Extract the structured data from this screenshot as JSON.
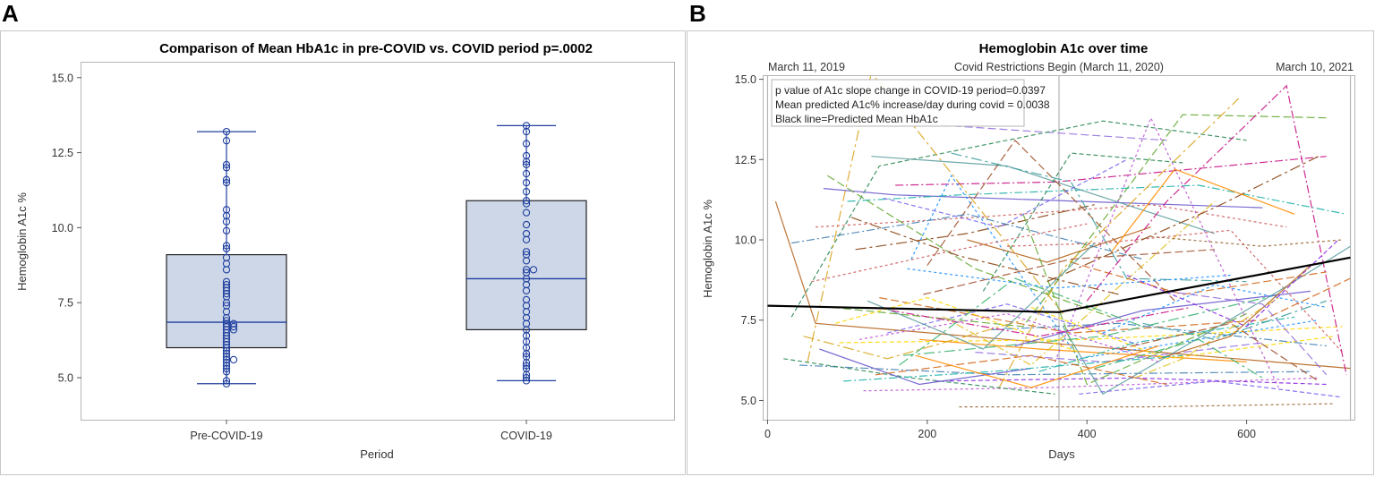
{
  "figure": {
    "panel_a_letter": "A",
    "panel_b_letter": "B"
  },
  "chart_data": [
    {
      "type": "box",
      "title": "Comparison of Mean HbA1c in pre-COVID vs. COVID period p=.0002",
      "xlabel": "Period",
      "ylabel": "Hemoglobin A1c %",
      "ylim": [
        3.6,
        15.5
      ],
      "yticks": [
        5.0,
        7.5,
        10.0,
        12.5,
        15.0
      ],
      "ytick_labels": [
        "5.0",
        "7.5",
        "10.0",
        "12.5",
        "15.0"
      ],
      "categories": [
        "Pre-COVID-19",
        "COVID-19"
      ],
      "boxes": [
        {
          "name": "Pre-COVID-19",
          "min": 4.8,
          "q1": 6.0,
          "median": 6.85,
          "q3": 9.1,
          "max": 13.2,
          "points": [
            4.8,
            4.9,
            5.2,
            5.3,
            5.4,
            5.5,
            5.6,
            5.6,
            5.7,
            5.8,
            5.9,
            6.0,
            6.1,
            6.2,
            6.3,
            6.4,
            6.5,
            6.6,
            6.6,
            6.7,
            6.7,
            6.8,
            6.8,
            6.9,
            7.0,
            7.2,
            7.4,
            7.5,
            7.7,
            7.8,
            7.9,
            8.0,
            8.1,
            8.2,
            8.6,
            8.8,
            9.0,
            9.3,
            9.4,
            9.9,
            10.2,
            10.4,
            10.6,
            11.5,
            11.6,
            12.0,
            12.1,
            12.9,
            13.2
          ]
        },
        {
          "name": "COVID-19",
          "min": 4.9,
          "q1": 6.6,
          "median": 8.3,
          "q3": 10.9,
          "max": 13.4,
          "points": [
            4.9,
            5.0,
            5.1,
            5.3,
            5.4,
            5.5,
            5.7,
            5.8,
            6.0,
            6.2,
            6.4,
            6.6,
            6.8,
            7.0,
            7.2,
            7.4,
            7.6,
            7.9,
            8.1,
            8.3,
            8.5,
            8.6,
            8.6,
            8.9,
            9.1,
            9.2,
            9.6,
            9.8,
            10.1,
            10.5,
            10.8,
            10.9,
            11.2,
            11.5,
            11.8,
            12.1,
            12.2,
            12.4,
            12.8,
            13.2,
            13.4
          ]
        }
      ]
    },
    {
      "type": "line",
      "title": "Hemoglobin A1c over time",
      "xlabel": "Days",
      "ylabel": "Hemoglobin A1c %",
      "xlim": [
        -5,
        735
      ],
      "ylim": [
        4.4,
        15.1
      ],
      "xticks": [
        0,
        200,
        400,
        600
      ],
      "xtick_labels": [
        "0",
        "200",
        "400",
        "600"
      ],
      "yticks": [
        5.0,
        7.5,
        10.0,
        12.5,
        15.0
      ],
      "ytick_labels": [
        "5.0",
        "7.5",
        "10.0",
        "12.5",
        "15.0"
      ],
      "reference_lines": [
        {
          "x": 0,
          "label": "March 11, 2019"
        },
        {
          "x": 365,
          "label": "Covid Restrictions Begin (March 11, 2020)"
        },
        {
          "x": 730,
          "label": "March 10, 2021"
        }
      ],
      "annotations": [
        "p value of A1c slope change in COVID-19 period=0.0397",
        "Mean predicted A1c% increase/day during covid = 0.0038",
        "Black line=Predicted Mean HbA1c"
      ],
      "predicted_mean": {
        "x": [
          0,
          365,
          730
        ],
        "y": [
          7.95,
          7.75,
          9.45
        ],
        "color": "#000000"
      },
      "palette": [
        "#b5651d",
        "#9370db",
        "#2e8b57",
        "#4682b4",
        "#daa520",
        "#cd5c5c",
        "#6a5acd",
        "#66aa33",
        "#ffd700",
        "#20b2aa",
        "#8b4513",
        "#ba55d3",
        "#5f9ea0",
        "#d2691e",
        "#7b68ee",
        "#c71585",
        "#3cb371",
        "#1e90ff",
        "#ff8c00",
        "#a0522d",
        "#8a2be2",
        "#e0c020",
        "#40a0a0",
        "#996633"
      ],
      "series": [
        {
          "x": [
            10,
            60,
            730
          ],
          "y": [
            11.2,
            7.4,
            6.0
          ]
        },
        {
          "x": [
            20,
            200,
            500
          ],
          "y": [
            14.8,
            13.6,
            13.1
          ]
        },
        {
          "x": [
            30,
            140,
            420,
            600
          ],
          "y": [
            7.6,
            12.3,
            13.7,
            13.1
          ]
        },
        {
          "x": [
            40,
            300,
            680
          ],
          "y": [
            6.1,
            5.8,
            5.9
          ]
        },
        {
          "x": [
            50,
            130,
            370
          ],
          "y": [
            6.2,
            15.2,
            7.7
          ]
        },
        {
          "x": [
            60,
            260,
            480,
            650
          ],
          "y": [
            10.4,
            10.7,
            11.1,
            10.4
          ]
        },
        {
          "x": [
            70,
            160,
            620
          ],
          "y": [
            11.6,
            11.4,
            11.0
          ]
        },
        {
          "x": [
            80,
            320,
            520,
            700
          ],
          "y": [
            7.9,
            7.3,
            13.9,
            13.8
          ]
        },
        {
          "x": [
            90,
            400,
            720
          ],
          "y": [
            6.8,
            6.9,
            7.3
          ]
        },
        {
          "x": [
            100,
            240,
            540,
            725
          ],
          "y": [
            11.2,
            11.4,
            11.7,
            10.8
          ]
        },
        {
          "x": [
            110,
            250,
            410
          ],
          "y": [
            9.7,
            10.2,
            11.1
          ]
        },
        {
          "x": [
            120,
            350,
            690
          ],
          "y": [
            5.3,
            5.4,
            5.7
          ]
        },
        {
          "x": [
            130,
            300,
            560
          ],
          "y": [
            12.6,
            12.3,
            10.2
          ]
        },
        {
          "x": [
            140,
            380,
            620,
            730
          ],
          "y": [
            8.2,
            7.1,
            7.5,
            8.8
          ]
        },
        {
          "x": [
            150,
            300,
            470
          ],
          "y": [
            7.1,
            8.0,
            6.7
          ]
        },
        {
          "x": [
            160,
            360,
            700
          ],
          "y": [
            11.7,
            11.8,
            12.6
          ]
        },
        {
          "x": [
            170,
            420,
            640
          ],
          "y": [
            6.4,
            7.0,
            8.3
          ]
        },
        {
          "x": [
            180,
            230,
            390,
            690
          ],
          "y": [
            9.4,
            12.0,
            6.3,
            7.5
          ]
        },
        {
          "x": [
            190,
            340,
            600
          ],
          "y": [
            6.9,
            6.6,
            6.2
          ]
        },
        {
          "x": [
            200,
            310,
            510
          ],
          "y": [
            9.2,
            13.1,
            8.1
          ]
        },
        {
          "x": [
            210,
            460,
            700
          ],
          "y": [
            5.6,
            5.7,
            5.5
          ]
        },
        {
          "x": [
            220,
            330,
            560
          ],
          "y": [
            7.6,
            6.1,
            11.2
          ]
        },
        {
          "x": [
            230,
            380,
            450,
            600
          ],
          "y": [
            12.7,
            11.8,
            8.8,
            8.7
          ]
        },
        {
          "x": [
            240,
            480,
            710
          ],
          "y": [
            4.8,
            4.8,
            4.9
          ]
        },
        {
          "x": [
            250,
            350,
            480
          ],
          "y": [
            10.0,
            9.3,
            10.4
          ]
        },
        {
          "x": [
            260,
            420,
            620
          ],
          "y": [
            6.5,
            6.2,
            6.8
          ]
        },
        {
          "x": [
            270,
            380,
            520
          ],
          "y": [
            8.4,
            12.7,
            12.4
          ]
        },
        {
          "x": [
            280,
            440,
            700
          ],
          "y": [
            7.2,
            7.4,
            6.7
          ]
        },
        {
          "x": [
            290,
            370,
            590
          ],
          "y": [
            5.4,
            9.1,
            14.4
          ]
        },
        {
          "x": [
            300,
            420,
            580,
            720
          ],
          "y": [
            9.8,
            9.9,
            10.3,
            6.5
          ]
        },
        {
          "x": [
            310,
            470,
            680
          ],
          "y": [
            6.7,
            7.8,
            8.4
          ]
        },
        {
          "x": [
            320,
            400,
            600
          ],
          "y": [
            10.8,
            5.5,
            7.7
          ]
        },
        {
          "x": [
            330,
            500,
            710
          ],
          "y": [
            7.9,
            6.3,
            7.0
          ]
        },
        {
          "x": [
            340,
            460,
            660
          ],
          "y": [
            5.9,
            6.8,
            7.6
          ]
        },
        {
          "x": [
            350,
            560,
            690
          ],
          "y": [
            8.7,
            11.0,
            12.6
          ]
        },
        {
          "x": [
            360,
            480,
            640
          ],
          "y": [
            6.2,
            13.8,
            5.4
          ]
        },
        {
          "x": [
            370,
            420,
            640,
            730
          ],
          "y": [
            7.3,
            5.2,
            8.4,
            9.8
          ]
        },
        {
          "x": [
            380,
            520,
            700
          ],
          "y": [
            9.3,
            8.3,
            9.0
          ]
        },
        {
          "x": [
            390,
            560,
            720
          ],
          "y": [
            5.2,
            5.6,
            5.1
          ]
        },
        {
          "x": [
            400,
            500,
            650,
            725
          ],
          "y": [
            8.1,
            11.2,
            14.8,
            5.8
          ]
        },
        {
          "x": [
            410,
            540,
            620
          ],
          "y": [
            6.0,
            6.9,
            5.7
          ]
        },
        {
          "x": [
            420,
            560,
            700
          ],
          "y": [
            7.1,
            8.6,
            7.9
          ]
        },
        {
          "x": [
            430,
            510,
            660
          ],
          "y": [
            9.6,
            12.2,
            10.8
          ]
        },
        {
          "x": [
            440,
            580,
            690
          ],
          "y": [
            6.6,
            7.4,
            5.6
          ]
        },
        {
          "x": [
            450,
            600,
            715
          ],
          "y": [
            8.9,
            7.3,
            10.0
          ]
        },
        {
          "x": [
            460,
            520,
            640
          ],
          "y": [
            5.7,
            6.3,
            8.2
          ]
        },
        {
          "x": [
            470,
            560,
            700
          ],
          "y": [
            7.4,
            6.9,
            8.1
          ]
        },
        {
          "x": [
            480,
            620,
            720
          ],
          "y": [
            10.1,
            9.8,
            10.0
          ]
        },
        {
          "x": [
            490,
            580,
            680
          ],
          "y": [
            6.3,
            7.0,
            9.2
          ]
        },
        {
          "x": [
            500,
            620,
            700
          ],
          "y": [
            8.4,
            8.0,
            5.8
          ]
        },
        {
          "x": [
            20,
            180,
            360
          ],
          "y": [
            6.3,
            5.7,
            5.2
          ]
        },
        {
          "x": [
            30,
            250,
            470
          ],
          "y": [
            9.9,
            10.8,
            9.4
          ]
        },
        {
          "x": [
            45,
            150,
            320
          ],
          "y": [
            7.0,
            6.3,
            7.5
          ]
        },
        {
          "x": [
            55,
            220,
            400
          ],
          "y": [
            8.7,
            9.6,
            10.5
          ]
        },
        {
          "x": [
            65,
            190,
            330
          ],
          "y": [
            6.6,
            5.5,
            6.0
          ]
        },
        {
          "x": [
            75,
            260,
            430
          ],
          "y": [
            12.0,
            9.1,
            7.6
          ]
        },
        {
          "x": [
            85,
            200,
            390
          ],
          "y": [
            7.4,
            8.2,
            6.5
          ]
        },
        {
          "x": [
            95,
            280,
            520
          ],
          "y": [
            5.6,
            5.9,
            6.4
          ]
        },
        {
          "x": [
            105,
            240,
            440
          ],
          "y": [
            10.7,
            9.5,
            8.3
          ]
        },
        {
          "x": [
            115,
            300,
            490
          ],
          "y": [
            6.9,
            7.7,
            6.2
          ]
        },
        {
          "x": [
            125,
            270,
            410
          ],
          "y": [
            8.1,
            6.6,
            9.9
          ]
        },
        {
          "x": [
            135,
            330,
            500
          ],
          "y": [
            5.8,
            6.4,
            5.5
          ]
        },
        {
          "x": [
            145,
            290,
            450
          ],
          "y": [
            11.3,
            10.4,
            12.5
          ]
        },
        {
          "x": [
            155,
            340,
            530
          ],
          "y": [
            7.8,
            7.0,
            7.9
          ]
        },
        {
          "x": [
            165,
            310,
            470
          ],
          "y": [
            6.1,
            8.8,
            7.3
          ]
        },
        {
          "x": [
            175,
            360,
            580
          ],
          "y": [
            9.1,
            8.5,
            8.9
          ]
        },
        {
          "x": [
            185,
            330,
            490
          ],
          "y": [
            6.4,
            5.4,
            6.7
          ]
        },
        {
          "x": [
            195,
            380,
            560
          ],
          "y": [
            8.3,
            9.4,
            9.7
          ]
        }
      ]
    }
  ]
}
